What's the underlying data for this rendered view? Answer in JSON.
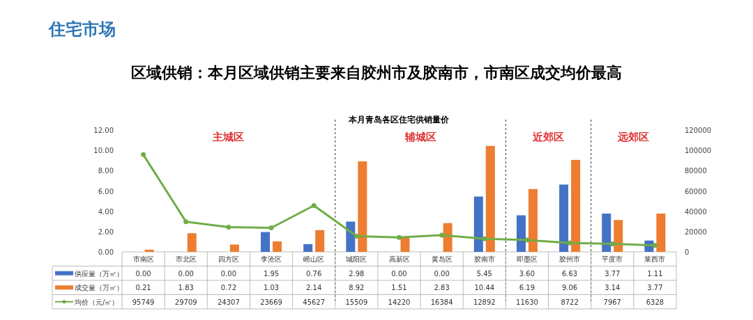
{
  "chart_data": {
    "type": "bar",
    "title": "区域供销：本月区域供销主要来自胶州市及胶南市，市南区成交均价最高",
    "subtitle": "本月青岛各区住宅供销量价",
    "annotations": [
      "住宅市场",
      "主城区",
      "辅城区",
      "近郊区",
      "远郊区"
    ],
    "categories": [
      "市南区",
      "市北区",
      "四方区",
      "李沧区",
      "崂山区",
      "城阳区",
      "高新区",
      "黄岛区",
      "胶南市",
      "即墨区",
      "胶州市",
      "平度市",
      "莱西市"
    ],
    "series": [
      {
        "name": "供应量（万㎡）",
        "color": "#4472c4",
        "values": [
          0.0,
          0.0,
          0.0,
          1.95,
          0.76,
          2.98,
          0.0,
          0.0,
          5.45,
          3.6,
          6.63,
          3.77,
          1.11
        ],
        "value_labels": [
          "0.00",
          "0.00",
          "0.00",
          "1.95",
          "0.76",
          "2.98",
          "0.00",
          "0.00",
          "5.45",
          "3.60",
          "6.63",
          "3.77",
          "1.11"
        ]
      },
      {
        "name": "成交量（万㎡）",
        "color": "#ed7d31",
        "values": [
          0.21,
          1.83,
          0.72,
          1.03,
          2.14,
          8.92,
          1.51,
          2.83,
          10.44,
          6.19,
          9.06,
          3.14,
          3.77
        ],
        "value_labels": [
          "0.21",
          "1.83",
          "0.72",
          "1.03",
          "2.14",
          "8.92",
          "1.51",
          "2.83",
          "10.44",
          "6.19",
          "9.06",
          "3.14",
          "3.77"
        ]
      },
      {
        "name": "均价（元/㎡）",
        "type": "line",
        "axis": "y2",
        "color": "#70ad47",
        "marker": "circle",
        "values": [
          95749,
          29709,
          24307,
          23669,
          45627,
          15509,
          14220,
          16384,
          12892,
          11630,
          8722,
          7967,
          6328
        ],
        "value_labels": [
          "95749",
          "29709",
          "24307",
          "23669",
          "45627",
          "15509",
          "14220",
          "16384",
          "12892",
          "11630",
          "8722",
          "7967",
          "6328"
        ]
      }
    ],
    "ylim": [
      0,
      12
    ],
    "yticks": [
      {
        "value": 0,
        "label": "0.00"
      },
      {
        "value": 2,
        "label": "2.00"
      },
      {
        "value": 4,
        "label": "4.00"
      },
      {
        "value": 6,
        "label": "6.00"
      },
      {
        "value": 8,
        "label": "8.00"
      },
      {
        "value": 10,
        "label": "10.00"
      },
      {
        "value": 12,
        "label": "12.00"
      }
    ],
    "y2lim": [
      0,
      120000
    ],
    "y2ticks": [
      0,
      20000,
      40000,
      60000,
      80000,
      100000,
      120000
    ],
    "legend": "bottom",
    "grid": false
  }
}
